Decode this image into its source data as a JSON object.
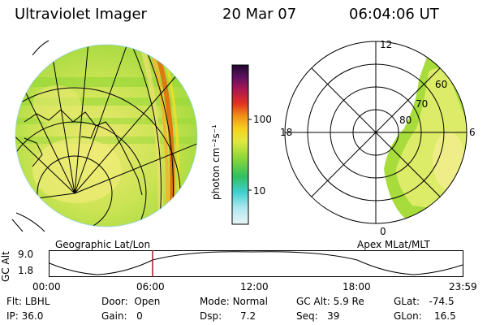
{
  "header": {
    "title": "Ultraviolet Imager",
    "date": "20 Mar 07",
    "time": "06:04:06 UT"
  },
  "colorbar": {
    "label": "photon cm⁻²s⁻¹",
    "ticks": [
      "100",
      "10"
    ]
  },
  "geo_panel": {
    "caption": "Geographic Lat/Lon"
  },
  "polar_panel": {
    "caption": "Apex MLat/MLT",
    "mlt_labels": [
      "12",
      "18",
      "6",
      "0"
    ],
    "mlat_labels": [
      "60",
      "70",
      "80"
    ]
  },
  "orbit": {
    "axis_label": "GC Alt",
    "y_ticks": [
      "9.0",
      "1.8"
    ],
    "x_ticks": [
      "00:00",
      "06:00",
      "12:00",
      "18:00",
      "23:59"
    ]
  },
  "status": {
    "flt": {
      "label": "Flt:",
      "value": "LBHL"
    },
    "ip": {
      "label": "IP:",
      "value": "36.0"
    },
    "door": {
      "label": "Door:",
      "value": "Open"
    },
    "gain": {
      "label": "Gain:",
      "value": "0"
    },
    "mode": {
      "label": "Mode:",
      "value": "Normal"
    },
    "dsp": {
      "label": "Dsp:",
      "value": "7.2"
    },
    "gcalt": {
      "label": "GC Alt:",
      "value": "5.9 Re"
    },
    "seq": {
      "label": "Seq:",
      "value": "39"
    },
    "glat": {
      "label": "GLat:",
      "value": "-74.5"
    },
    "glon": {
      "label": "GLon:",
      "value": "16.5"
    }
  },
  "colors": {
    "image_base": "#a8dc3c",
    "image_light": "#e6ee70",
    "aurora": "#e07810",
    "marker": "#a01830"
  }
}
